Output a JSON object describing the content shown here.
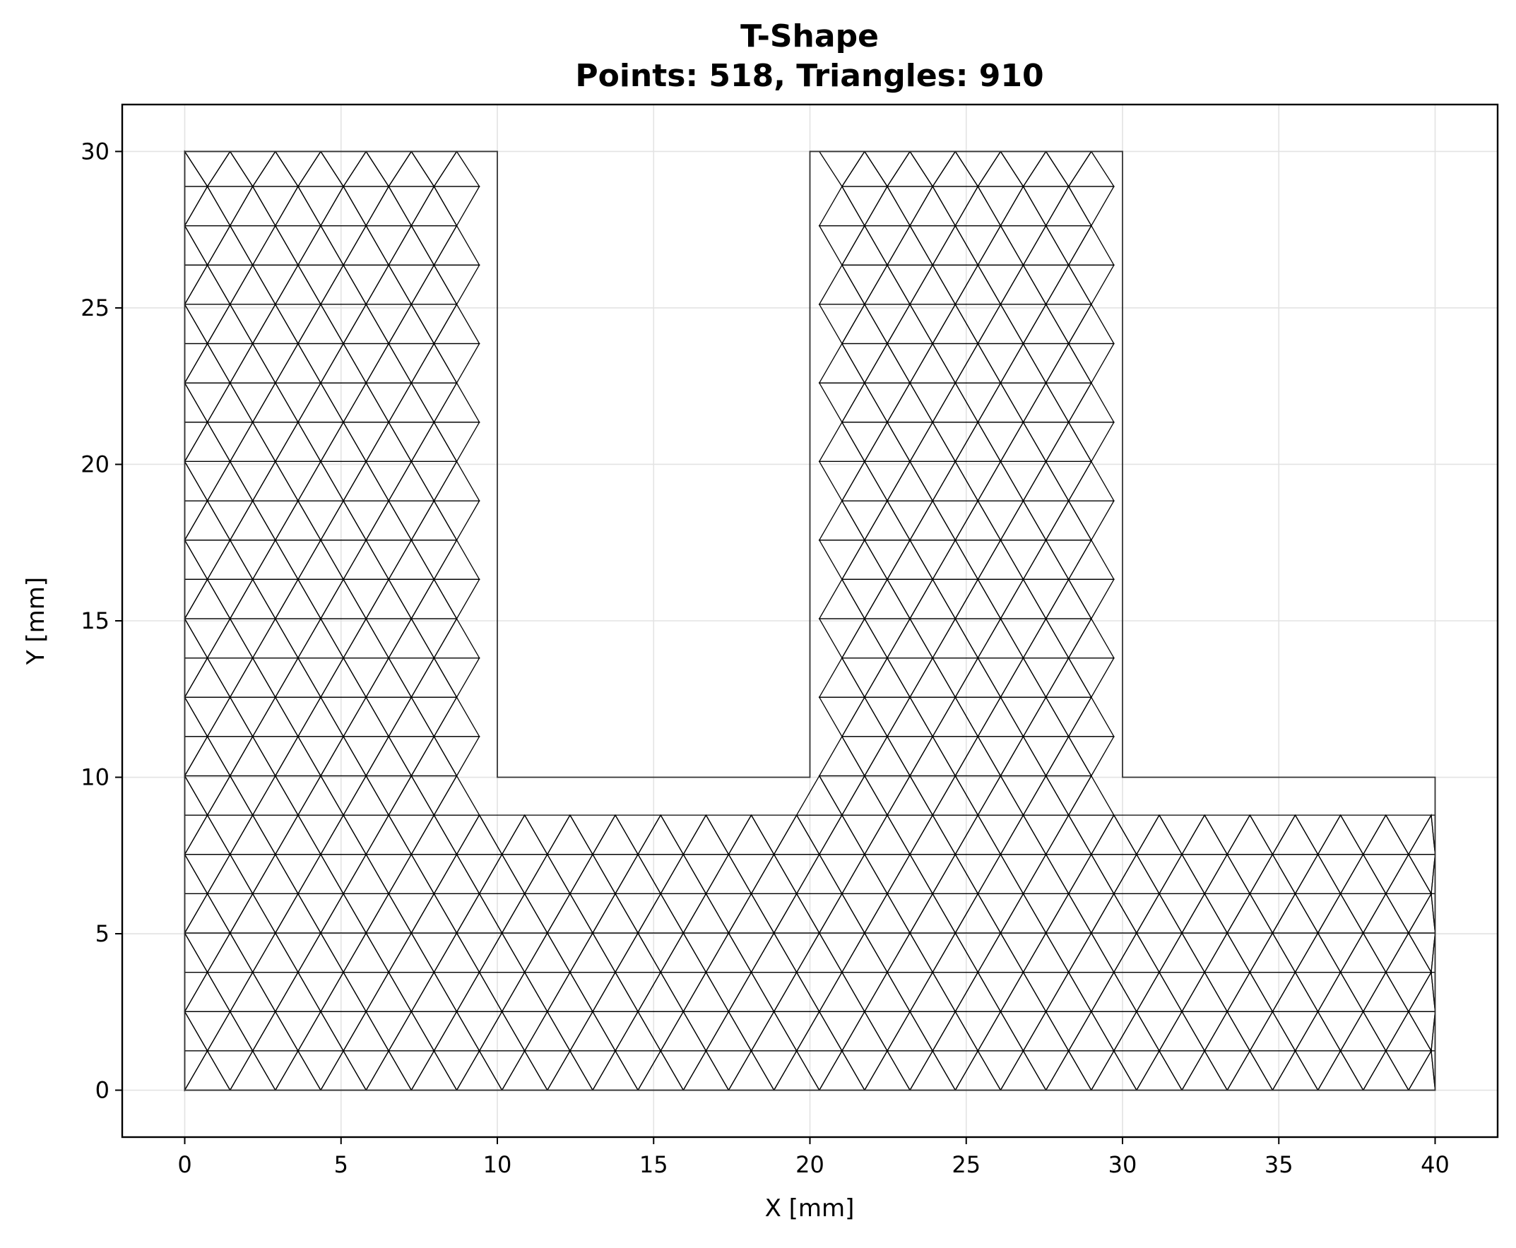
{
  "chart_data": {
    "type": "mesh",
    "title": "T-Shape",
    "subtitle": "Points: 518, Triangles: 910",
    "xlabel": "X [mm]",
    "ylabel": "Y [mm]",
    "xlim": [
      -2,
      42
    ],
    "ylim": [
      -1.5,
      31.5
    ],
    "xticks": [
      0,
      5,
      10,
      15,
      20,
      25,
      30,
      35,
      40
    ],
    "yticks": [
      0,
      5,
      10,
      15,
      20,
      25,
      30
    ],
    "grid": true,
    "outline": [
      [
        0,
        0
      ],
      [
        40,
        0
      ],
      [
        40,
        10
      ],
      [
        30,
        10
      ],
      [
        30,
        30
      ],
      [
        20,
        30
      ],
      [
        20,
        10
      ],
      [
        10,
        10
      ],
      [
        10,
        30
      ],
      [
        0,
        30
      ]
    ],
    "mesh_spacing_mm": 1.45,
    "colors": {
      "mesh": "#000000",
      "grid": "#e3e3e3",
      "frame": "#000000"
    }
  }
}
